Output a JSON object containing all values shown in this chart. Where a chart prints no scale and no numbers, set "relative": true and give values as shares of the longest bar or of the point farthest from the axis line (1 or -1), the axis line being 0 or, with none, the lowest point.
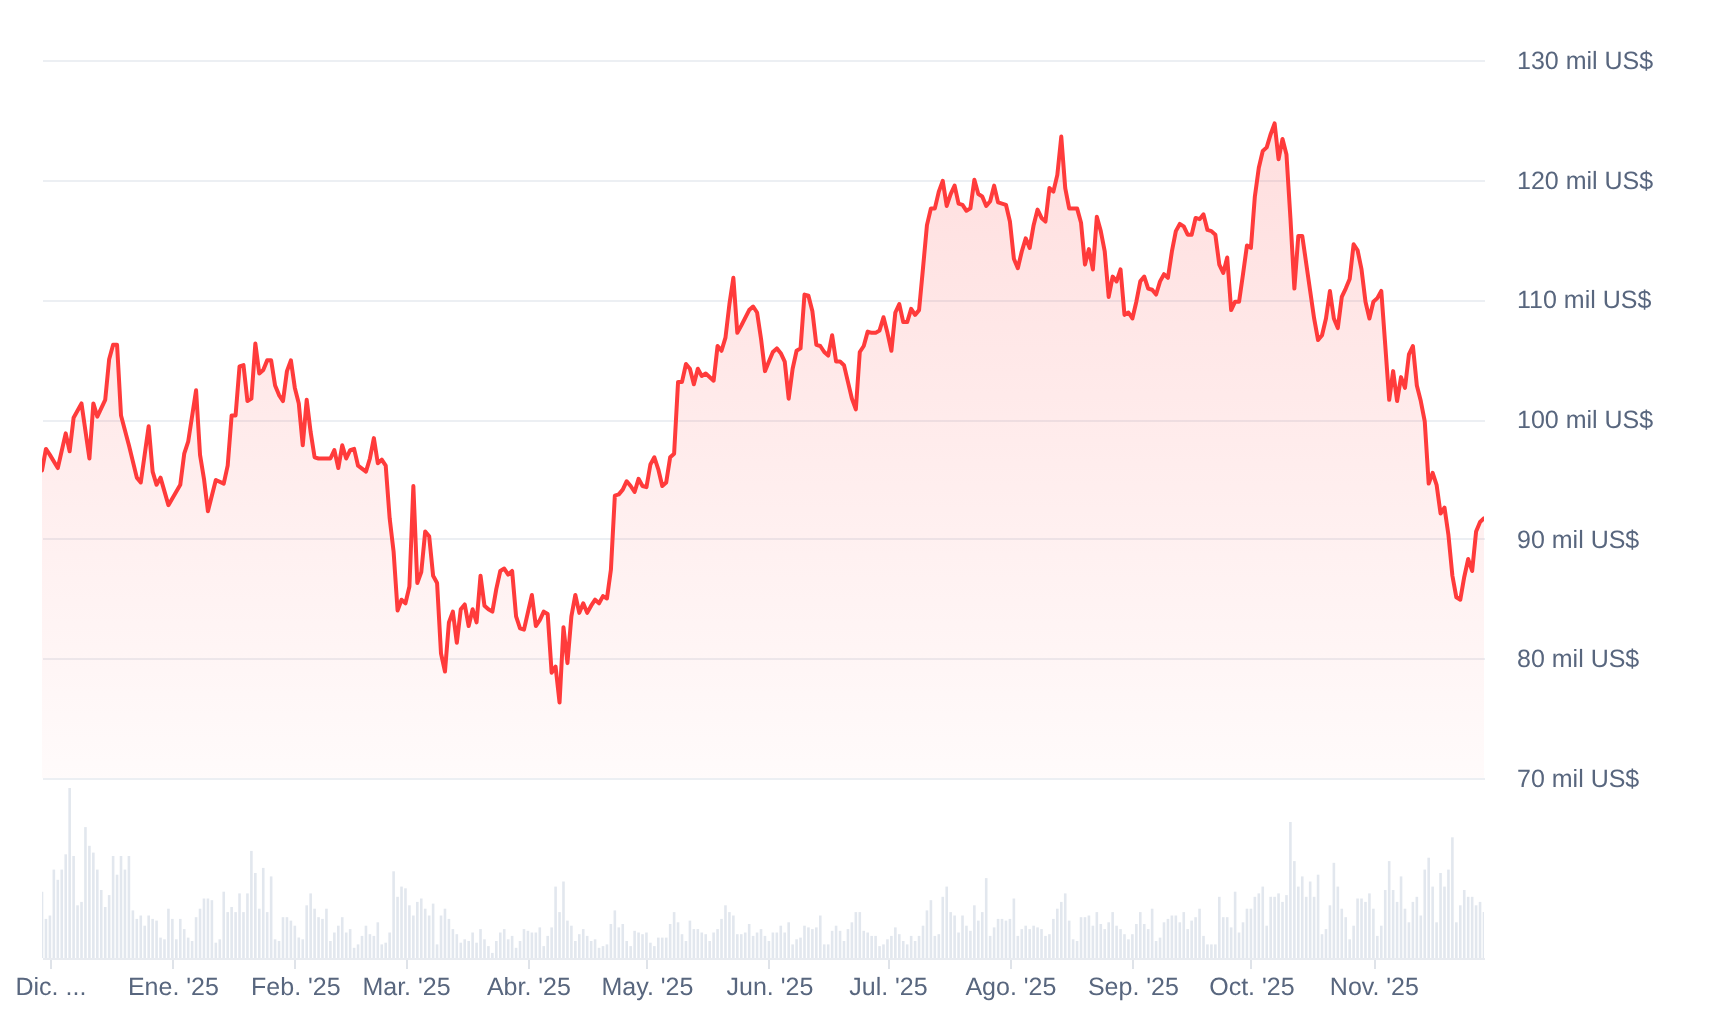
{
  "chart_data": [
    {
      "type": "area",
      "tick_labels": "y",
      "grid": "y",
      "xlim": [
        "2024-11-29",
        "2025-11-29"
      ],
      "ylim": [
        70,
        130
      ],
      "yticks": [
        {
          "value": 70,
          "label": "70 mil US$"
        },
        {
          "value": 80,
          "label": "80 mil US$"
        },
        {
          "value": 90,
          "label": "90 mil US$"
        },
        {
          "value": 100,
          "label": "100 mil US$"
        },
        {
          "value": 110,
          "label": "110 mil US$"
        },
        {
          "value": 120,
          "label": "120 mil US$"
        },
        {
          "value": 130,
          "label": "130 mil US$"
        }
      ],
      "x": [
        "2024-11-29",
        "2024-11-30",
        "2024-12-01",
        "2024-12-03",
        "2024-12-05",
        "2024-12-06",
        "2024-12-07",
        "2024-12-09",
        "2024-12-11",
        "2024-12-12",
        "2024-12-13",
        "2024-12-15",
        "2024-12-16",
        "2024-12-17",
        "2024-12-18",
        "2024-12-19",
        "2024-12-21",
        "2024-12-23",
        "2024-12-24",
        "2024-12-26",
        "2024-12-27",
        "2024-12-28",
        "2024-12-29",
        "2024-12-31",
        "2025-01-03",
        "2025-01-04",
        "2025-01-05",
        "2025-01-07",
        "2025-01-08",
        "2025-01-09",
        "2025-01-10",
        "2025-01-12",
        "2025-01-14",
        "2025-01-15",
        "2025-01-16",
        "2025-01-17",
        "2025-01-18",
        "2025-01-19",
        "2025-01-20",
        "2025-01-21",
        "2025-01-22",
        "2025-01-23",
        "2025-01-24",
        "2025-01-25",
        "2025-01-26",
        "2025-01-27",
        "2025-01-28",
        "2025-01-29",
        "2025-01-30",
        "2025-01-31",
        "2025-02-01",
        "2025-02-02",
        "2025-02-03",
        "2025-02-04",
        "2025-02-05",
        "2025-02-06",
        "2025-02-07",
        "2025-02-10",
        "2025-02-11",
        "2025-02-12",
        "2025-02-13",
        "2025-02-14",
        "2025-02-15",
        "2025-02-16",
        "2025-02-17",
        "2025-02-19",
        "2025-02-20",
        "2025-02-21",
        "2025-02-22",
        "2025-02-23",
        "2025-02-24",
        "2025-02-25",
        "2025-02-26",
        "2025-02-27",
        "2025-02-28",
        "2025-03-01",
        "2025-03-02",
        "2025-03-03",
        "2025-03-04",
        "2025-03-05",
        "2025-03-06",
        "2025-03-07",
        "2025-03-08",
        "2025-03-09",
        "2025-03-10",
        "2025-03-11",
        "2025-03-12",
        "2025-03-13",
        "2025-03-14",
        "2025-03-15",
        "2025-03-16",
        "2025-03-17",
        "2025-03-18",
        "2025-03-19",
        "2025-03-20",
        "2025-03-21",
        "2025-03-22",
        "2025-03-23",
        "2025-03-24",
        "2025-03-25",
        "2025-03-26",
        "2025-03-27",
        "2025-03-28",
        "2025-03-29",
        "2025-03-30",
        "2025-03-31",
        "2025-04-02",
        "2025-04-03",
        "2025-04-04",
        "2025-04-05",
        "2025-04-06",
        "2025-04-07",
        "2025-04-08",
        "2025-04-09",
        "2025-04-10",
        "2025-04-11",
        "2025-04-12",
        "2025-04-13",
        "2025-04-14",
        "2025-04-15",
        "2025-04-16",
        "2025-04-17",
        "2025-04-18",
        "2025-04-19",
        "2025-04-20",
        "2025-04-21",
        "2025-04-22",
        "2025-04-23",
        "2025-04-24",
        "2025-04-25",
        "2025-04-26",
        "2025-04-27",
        "2025-04-28",
        "2025-04-29",
        "2025-04-30",
        "2025-05-01",
        "2025-05-02",
        "2025-05-03",
        "2025-05-04",
        "2025-05-05",
        "2025-05-06",
        "2025-05-07",
        "2025-05-08",
        "2025-05-09",
        "2025-05-10",
        "2025-05-11",
        "2025-05-12",
        "2025-05-13",
        "2025-05-14",
        "2025-05-15",
        "2025-05-16",
        "2025-05-18",
        "2025-05-19",
        "2025-05-20",
        "2025-05-21",
        "2025-05-22",
        "2025-05-23",
        "2025-05-24",
        "2025-05-25",
        "2025-05-27",
        "2025-05-28",
        "2025-05-29",
        "2025-05-30",
        "2025-05-31",
        "2025-06-01",
        "2025-06-02",
        "2025-06-03",
        "2025-06-04",
        "2025-06-05",
        "2025-06-06",
        "2025-06-07",
        "2025-06-08",
        "2025-06-09",
        "2025-06-10",
        "2025-06-11",
        "2025-06-12",
        "2025-06-13",
        "2025-06-14",
        "2025-06-15",
        "2025-06-16",
        "2025-06-17",
        "2025-06-18",
        "2025-06-19",
        "2025-06-20",
        "2025-06-21",
        "2025-06-22",
        "2025-06-23",
        "2025-06-24",
        "2025-06-25",
        "2025-06-26",
        "2025-06-27",
        "2025-06-28",
        "2025-06-29",
        "2025-06-30",
        "2025-07-01",
        "2025-07-02",
        "2025-07-03",
        "2025-07-04",
        "2025-07-05",
        "2025-07-06",
        "2025-07-07",
        "2025-07-08",
        "2025-07-09",
        "2025-07-10",
        "2025-07-11",
        "2025-07-12",
        "2025-07-13",
        "2025-07-14",
        "2025-07-15",
        "2025-07-16",
        "2025-07-17",
        "2025-07-18",
        "2025-07-19",
        "2025-07-20",
        "2025-07-21",
        "2025-07-22",
        "2025-07-23",
        "2025-07-24",
        "2025-07-25",
        "2025-07-26",
        "2025-07-27",
        "2025-07-28",
        "2025-07-29",
        "2025-07-30",
        "2025-07-31",
        "2025-08-01",
        "2025-08-02",
        "2025-08-03",
        "2025-08-04",
        "2025-08-05",
        "2025-08-06",
        "2025-08-07",
        "2025-08-08",
        "2025-08-09",
        "2025-08-10",
        "2025-08-11",
        "2025-08-12",
        "2025-08-13",
        "2025-08-14",
        "2025-08-15",
        "2025-08-16",
        "2025-08-17",
        "2025-08-18",
        "2025-08-19",
        "2025-08-20",
        "2025-08-21",
        "2025-08-22",
        "2025-08-23",
        "2025-08-24",
        "2025-08-25",
        "2025-08-26",
        "2025-08-27",
        "2025-08-28",
        "2025-08-29",
        "2025-08-30",
        "2025-08-31",
        "2025-09-01",
        "2025-09-02",
        "2025-09-03",
        "2025-09-04",
        "2025-09-05",
        "2025-09-06",
        "2025-09-07",
        "2025-09-08",
        "2025-09-09",
        "2025-09-10",
        "2025-09-11",
        "2025-09-12",
        "2025-09-13",
        "2025-09-14",
        "2025-09-15",
        "2025-09-16",
        "2025-09-17",
        "2025-09-18",
        "2025-09-19",
        "2025-09-20",
        "2025-09-21",
        "2025-09-22",
        "2025-09-23",
        "2025-09-24",
        "2025-09-25",
        "2025-09-26",
        "2025-09-27",
        "2025-09-28",
        "2025-09-29",
        "2025-09-30",
        "2025-10-01",
        "2025-10-02",
        "2025-10-03",
        "2025-10-04",
        "2025-10-05",
        "2025-10-06",
        "2025-10-07",
        "2025-10-08",
        "2025-10-09",
        "2025-10-10",
        "2025-10-11",
        "2025-10-12",
        "2025-10-13",
        "2025-10-14",
        "2025-10-15",
        "2025-10-16",
        "2025-10-17",
        "2025-10-18",
        "2025-10-19",
        "2025-10-20",
        "2025-10-21",
        "2025-10-22",
        "2025-10-23",
        "2025-10-24",
        "2025-10-25",
        "2025-10-26",
        "2025-10-27",
        "2025-10-28",
        "2025-10-29",
        "2025-10-30",
        "2025-10-31",
        "2025-11-01",
        "2025-11-02",
        "2025-11-03",
        "2025-11-04",
        "2025-11-05",
        "2025-11-06",
        "2025-11-07",
        "2025-11-08",
        "2025-11-09",
        "2025-11-10",
        "2025-11-11",
        "2025-11-12",
        "2025-11-13",
        "2025-11-14",
        "2025-11-15",
        "2025-11-16",
        "2025-11-17",
        "2025-11-18",
        "2025-11-19",
        "2025-11-20",
        "2025-11-21",
        "2025-11-22",
        "2025-11-23",
        "2025-11-24",
        "2025-11-25",
        "2025-11-26",
        "2025-11-27",
        "2025-11-28",
        "2025-11-29"
      ],
      "series": [
        {
          "color": "#ff3b3b",
          "values": [
            95.7,
            97.5,
            97.0,
            95.9,
            98.8,
            97.3,
            100.1,
            101.3,
            96.7,
            101.3,
            100.2,
            101.6,
            105.0,
            106.2,
            106.2,
            100.3,
            97.8,
            95.1,
            94.7,
            99.4,
            95.6,
            94.5,
            95.1,
            92.8,
            94.5,
            97.1,
            98.1,
            102.4,
            97.0,
            95.0,
            92.3,
            94.9,
            94.6,
            96.1,
            100.3,
            100.3,
            104.4,
            104.5,
            101.5,
            101.7,
            106.3,
            103.8,
            104.1,
            104.9,
            104.9,
            102.8,
            102.0,
            101.5,
            104.0,
            104.9,
            102.6,
            101.3,
            97.8,
            101.6,
            98.9,
            96.8,
            96.7,
            96.7,
            97.4,
            95.9,
            97.8,
            96.7,
            97.4,
            97.5,
            96.1,
            95.6,
            96.7,
            98.4,
            96.3,
            96.6,
            96.1,
            91.7,
            88.9,
            84.0,
            84.9,
            84.6,
            86.0,
            94.4,
            86.3,
            87.2,
            90.6,
            90.2,
            86.9,
            86.3,
            80.4,
            78.9,
            83.0,
            83.9,
            81.3,
            84.1,
            84.5,
            82.7,
            84.1,
            83.0,
            86.9,
            84.4,
            84.1,
            83.9,
            85.8,
            87.3,
            87.5,
            87.0,
            87.3,
            83.5,
            82.5,
            82.4,
            85.3,
            82.7,
            83.2,
            83.9,
            83.7,
            78.8,
            79.3,
            76.3,
            82.6,
            79.6,
            83.5,
            85.3,
            83.8,
            84.6,
            83.8,
            84.4,
            84.9,
            84.6,
            85.2,
            85.0,
            87.4,
            93.6,
            93.7,
            94.1,
            94.8,
            94.4,
            93.9,
            95.0,
            94.4,
            94.3,
            96.2,
            96.8,
            95.8,
            94.4,
            94.7,
            96.8,
            97.1,
            103.1,
            103.1,
            104.6,
            104.2,
            102.9,
            104.2,
            103.6,
            103.8,
            103.2,
            106.1,
            105.7,
            106.8,
            109.6,
            111.8,
            107.2,
            107.8,
            109.1,
            109.4,
            108.9,
            106.7,
            104.0,
            104.8,
            105.6,
            105.9,
            105.5,
            104.8,
            101.7,
            104.2,
            105.7,
            105.9,
            110.4,
            110.3,
            109.0,
            106.2,
            106.1,
            105.6,
            105.3,
            107.0,
            104.8,
            104.8,
            104.5,
            103.1,
            101.7,
            100.8,
            105.6,
            106.1,
            107.3,
            107.2,
            107.2,
            107.4,
            108.5,
            107.2,
            105.7,
            108.9,
            109.6,
            108.1,
            108.1,
            109.2,
            108.7,
            109.1,
            112.6,
            116.2,
            117.6,
            117.6,
            119.0,
            119.9,
            117.8,
            118.8,
            119.5,
            118.0,
            117.9,
            117.4,
            117.6,
            120.0,
            118.8,
            118.6,
            117.8,
            118.2,
            119.5,
            118.1,
            118.0,
            117.9,
            116.5,
            113.4,
            112.6,
            114.0,
            115.1,
            114.3,
            116.2,
            117.5,
            116.8,
            116.5,
            119.3,
            119.0,
            120.4,
            123.6,
            119.3,
            117.6,
            117.6,
            117.6,
            116.4,
            112.9,
            114.2,
            112.5,
            116.9,
            115.7,
            114.0,
            110.2,
            111.9,
            111.5,
            112.5,
            108.7,
            108.9,
            108.4,
            109.8,
            111.5,
            111.9,
            110.9,
            110.8,
            110.4,
            111.5,
            112.1,
            111.8,
            114.0,
            115.7,
            116.3,
            116.1,
            115.4,
            115.4,
            116.8,
            116.7,
            117.1,
            115.8,
            115.7,
            115.4,
            112.9,
            112.2,
            113.5,
            109.1,
            109.8,
            109.8,
            112.1,
            114.5,
            114.3,
            118.6,
            121.0,
            122.4,
            122.7,
            123.8,
            124.7,
            121.7,
            123.4,
            122.1,
            116.8,
            110.9,
            115.3,
            115.3,
            113.0,
            110.7,
            108.4,
            106.6,
            107.0,
            108.4,
            110.7,
            108.4,
            107.6,
            110.2,
            110.9,
            111.7,
            114.6,
            114.1,
            112.5,
            109.8,
            108.4,
            109.8,
            110.1,
            110.7,
            106.2,
            101.6,
            104.0,
            101.5,
            103.5,
            102.6,
            105.4,
            106.1,
            102.8,
            101.5,
            99.8,
            94.6,
            95.5,
            94.5,
            92.1,
            92.6,
            90.3,
            86.9,
            85.1,
            84.9,
            86.8,
            88.3,
            87.3,
            90.6,
            91.4,
            91.7
          ]
        }
      ]
    },
    {
      "type": "bar",
      "relative": true,
      "tick_labels": "x",
      "xlim": [
        "2024-11-29",
        "2025-11-29"
      ],
      "xticks": [
        {
          "value": "2024-12-01",
          "label": "Dic. ..."
        },
        {
          "value": "2025-01-01",
          "label": "Ene. '25"
        },
        {
          "value": "2025-02-01",
          "label": "Feb. '25"
        },
        {
          "value": "2025-03-01",
          "label": "Mar. '25"
        },
        {
          "value": "2025-04-01",
          "label": "Abr. '25"
        },
        {
          "value": "2025-05-01",
          "label": "May. '25"
        },
        {
          "value": "2025-06-01",
          "label": "Jun. '25"
        },
        {
          "value": "2025-07-01",
          "label": "Jul. '25"
        },
        {
          "value": "2025-08-01",
          "label": "Ago. '25"
        },
        {
          "value": "2025-09-01",
          "label": "Sep. '25"
        },
        {
          "value": "2025-10-01",
          "label": "Oct. '25"
        },
        {
          "value": "2025-11-01",
          "label": "Nov. '25"
        }
      ],
      "x": [
        "2024-11-29",
        "2024-11-30",
        "2024-12-01",
        "2024-12-02",
        "2024-12-03",
        "2024-12-04",
        "2024-12-05",
        "2024-12-06",
        "2024-12-07",
        "2024-12-08",
        "2024-12-09",
        "2024-12-10",
        "2024-12-11",
        "2024-12-12",
        "2024-12-13",
        "2024-12-14",
        "2024-12-15",
        "2024-12-16",
        "2024-12-17",
        "2024-12-18",
        "2024-12-19",
        "2024-12-20",
        "2024-12-21",
        "2024-12-22",
        "2024-12-23",
        "2024-12-24",
        "2024-12-25",
        "2024-12-26",
        "2024-12-27",
        "2024-12-28",
        "2024-12-29",
        "2024-12-30",
        "2024-12-31",
        "2025-01-01",
        "2025-01-02",
        "2025-01-03",
        "2025-01-04",
        "2025-01-05",
        "2025-01-06",
        "2025-01-07",
        "2025-01-08",
        "2025-01-09",
        "2025-01-10",
        "2025-01-11",
        "2025-01-12",
        "2025-01-13",
        "2025-01-14",
        "2025-01-15",
        "2025-01-16",
        "2025-01-17",
        "2025-01-18",
        "2025-01-19",
        "2025-01-20",
        "2025-01-21",
        "2025-01-22",
        "2025-01-23",
        "2025-01-24",
        "2025-01-25",
        "2025-01-26",
        "2025-01-27",
        "2025-01-28",
        "2025-01-29",
        "2025-01-30",
        "2025-01-31",
        "2025-02-01",
        "2025-02-02",
        "2025-02-03",
        "2025-02-04",
        "2025-02-05",
        "2025-02-06",
        "2025-02-07",
        "2025-02-08",
        "2025-02-09",
        "2025-02-10",
        "2025-02-11",
        "2025-02-12",
        "2025-02-13",
        "2025-02-14",
        "2025-02-15",
        "2025-02-16",
        "2025-02-17",
        "2025-02-18",
        "2025-02-19",
        "2025-02-20",
        "2025-02-21",
        "2025-02-22",
        "2025-02-23",
        "2025-02-24",
        "2025-02-25",
        "2025-02-26",
        "2025-02-27",
        "2025-02-28",
        "2025-03-01",
        "2025-03-02",
        "2025-03-03",
        "2025-03-04",
        "2025-03-05",
        "2025-03-06",
        "2025-03-07",
        "2025-03-08",
        "2025-03-09",
        "2025-03-10",
        "2025-03-11",
        "2025-03-12",
        "2025-03-13",
        "2025-03-14",
        "2025-03-15",
        "2025-03-16",
        "2025-03-17",
        "2025-03-18",
        "2025-03-19",
        "2025-03-20",
        "2025-03-21",
        "2025-03-22",
        "2025-03-23",
        "2025-03-24",
        "2025-03-25",
        "2025-03-26",
        "2025-03-27",
        "2025-03-28",
        "2025-03-29",
        "2025-03-30",
        "2025-03-31",
        "2025-04-01",
        "2025-04-02",
        "2025-04-03",
        "2025-04-04",
        "2025-04-05",
        "2025-04-06",
        "2025-04-07",
        "2025-04-08",
        "2025-04-09",
        "2025-04-10",
        "2025-04-11",
        "2025-04-12",
        "2025-04-13",
        "2025-04-14",
        "2025-04-15",
        "2025-04-16",
        "2025-04-17",
        "2025-04-18",
        "2025-04-19",
        "2025-04-20",
        "2025-04-21",
        "2025-04-22",
        "2025-04-23",
        "2025-04-24",
        "2025-04-25",
        "2025-04-26",
        "2025-04-27",
        "2025-04-28",
        "2025-04-29",
        "2025-04-30",
        "2025-05-01",
        "2025-05-02",
        "2025-05-03",
        "2025-05-04",
        "2025-05-05",
        "2025-05-06",
        "2025-05-07",
        "2025-05-08",
        "2025-05-09",
        "2025-05-10",
        "2025-05-11",
        "2025-05-12",
        "2025-05-13",
        "2025-05-14",
        "2025-05-15",
        "2025-05-16",
        "2025-05-17",
        "2025-05-18",
        "2025-05-19",
        "2025-05-20",
        "2025-05-21",
        "2025-05-22",
        "2025-05-23",
        "2025-05-24",
        "2025-05-25",
        "2025-05-26",
        "2025-05-27",
        "2025-05-28",
        "2025-05-29",
        "2025-05-30",
        "2025-05-31",
        "2025-06-01",
        "2025-06-02",
        "2025-06-03",
        "2025-06-04",
        "2025-06-05",
        "2025-06-06",
        "2025-06-07",
        "2025-06-08",
        "2025-06-09",
        "2025-06-10",
        "2025-06-11",
        "2025-06-12",
        "2025-06-13",
        "2025-06-14",
        "2025-06-15",
        "2025-06-16",
        "2025-06-17",
        "2025-06-18",
        "2025-06-19",
        "2025-06-20",
        "2025-06-21",
        "2025-06-22",
        "2025-06-23",
        "2025-06-24",
        "2025-06-25",
        "2025-06-26",
        "2025-06-27",
        "2025-06-28",
        "2025-06-29",
        "2025-06-30",
        "2025-07-01",
        "2025-07-02",
        "2025-07-03",
        "2025-07-04",
        "2025-07-05",
        "2025-07-06",
        "2025-07-07",
        "2025-07-08",
        "2025-07-09",
        "2025-07-10",
        "2025-07-11",
        "2025-07-12",
        "2025-07-13",
        "2025-07-14",
        "2025-07-15",
        "2025-07-16",
        "2025-07-17",
        "2025-07-18",
        "2025-07-19",
        "2025-07-20",
        "2025-07-21",
        "2025-07-22",
        "2025-07-23",
        "2025-07-24",
        "2025-07-25",
        "2025-07-26",
        "2025-07-27",
        "2025-07-28",
        "2025-07-29",
        "2025-07-30",
        "2025-07-31",
        "2025-08-01",
        "2025-08-02",
        "2025-08-03",
        "2025-08-04",
        "2025-08-05",
        "2025-08-06",
        "2025-08-07",
        "2025-08-08",
        "2025-08-09",
        "2025-08-10",
        "2025-08-11",
        "2025-08-12",
        "2025-08-13",
        "2025-08-14",
        "2025-08-15",
        "2025-08-16",
        "2025-08-17",
        "2025-08-18",
        "2025-08-19",
        "2025-08-20",
        "2025-08-21",
        "2025-08-22",
        "2025-08-23",
        "2025-08-24",
        "2025-08-25",
        "2025-08-26",
        "2025-08-27",
        "2025-08-28",
        "2025-08-29",
        "2025-08-30",
        "2025-08-31",
        "2025-09-01",
        "2025-09-02",
        "2025-09-03",
        "2025-09-04",
        "2025-09-05",
        "2025-09-06",
        "2025-09-07",
        "2025-09-08",
        "2025-09-09",
        "2025-09-10",
        "2025-09-11",
        "2025-09-12",
        "2025-09-13",
        "2025-09-14",
        "2025-09-15",
        "2025-09-16",
        "2025-09-17",
        "2025-09-18",
        "2025-09-19",
        "2025-09-20",
        "2025-09-21",
        "2025-09-22",
        "2025-09-23",
        "2025-09-24",
        "2025-09-25",
        "2025-09-26",
        "2025-09-27",
        "2025-09-28",
        "2025-09-29",
        "2025-09-30",
        "2025-10-01",
        "2025-10-02",
        "2025-10-03",
        "2025-10-04",
        "2025-10-05",
        "2025-10-06",
        "2025-10-07",
        "2025-10-08",
        "2025-10-09",
        "2025-10-10",
        "2025-10-11",
        "2025-10-12",
        "2025-10-13",
        "2025-10-14",
        "2025-10-15",
        "2025-10-16",
        "2025-10-17",
        "2025-10-18",
        "2025-10-19",
        "2025-10-20",
        "2025-10-21",
        "2025-10-22",
        "2025-10-23",
        "2025-10-24",
        "2025-10-25",
        "2025-10-26",
        "2025-10-27",
        "2025-10-28",
        "2025-10-29",
        "2025-10-30",
        "2025-10-31",
        "2025-11-01",
        "2025-11-02",
        "2025-11-03",
        "2025-11-04",
        "2025-11-05",
        "2025-11-06",
        "2025-11-07",
        "2025-11-08",
        "2025-11-09",
        "2025-11-10",
        "2025-11-11",
        "2025-11-12",
        "2025-11-13",
        "2025-11-14",
        "2025-11-15",
        "2025-11-16",
        "2025-11-17",
        "2025-11-18",
        "2025-11-19",
        "2025-11-20",
        "2025-11-21",
        "2025-11-22",
        "2025-11-23",
        "2025-11-24",
        "2025-11-25",
        "2025-11-26",
        "2025-11-27",
        "2025-11-28",
        "2025-11-29"
      ],
      "series": [
        {
          "color": "#e2e7ee",
          "values": [
            0.39,
            0.23,
            0.25,
            0.52,
            0.46,
            0.52,
            0.61,
            1,
            0.6,
            0.31,
            0.33,
            0.77,
            0.66,
            0.62,
            0.52,
            0.4,
            0.3,
            0.37,
            0.6,
            0.49,
            0.6,
            0.52,
            0.6,
            0.28,
            0.23,
            0.25,
            0.19,
            0.25,
            0.23,
            0.22,
            0.12,
            0.11,
            0.29,
            0.23,
            0.11,
            0.23,
            0.17,
            0.12,
            0.1,
            0.24,
            0.29,
            0.35,
            0.35,
            0.34,
            0.09,
            0.11,
            0.39,
            0.27,
            0.3,
            0.27,
            0.38,
            0.27,
            0.38,
            0.63,
            0.5,
            0.29,
            0.53,
            0.27,
            0.48,
            0.11,
            0.1,
            0.24,
            0.24,
            0.22,
            0.19,
            0.12,
            0.11,
            0.31,
            0.38,
            0.29,
            0.24,
            0.23,
            0.29,
            0.1,
            0.15,
            0.19,
            0.24,
            0.15,
            0.17,
            0.06,
            0.08,
            0.13,
            0.19,
            0.14,
            0.13,
            0.21,
            0.08,
            0.09,
            0.15,
            0.51,
            0.36,
            0.42,
            0.41,
            0.31,
            0.25,
            0.33,
            0.35,
            0.29,
            0.25,
            0.32,
            0.08,
            0.25,
            0.29,
            0.23,
            0.17,
            0.14,
            0.09,
            0.11,
            0.1,
            0.15,
            0.09,
            0.17,
            0.11,
            0.07,
            0.03,
            0.1,
            0.15,
            0.17,
            0.11,
            0.13,
            0.06,
            0.1,
            0.17,
            0.16,
            0.15,
            0.15,
            0.18,
            0.07,
            0.13,
            0.18,
            0.42,
            0.27,
            0.45,
            0.22,
            0.19,
            0.1,
            0.14,
            0.17,
            0.13,
            0.1,
            0.11,
            0.06,
            0.07,
            0.08,
            0.2,
            0.28,
            0.18,
            0.2,
            0.1,
            0.07,
            0.16,
            0.15,
            0.14,
            0.15,
            0.09,
            0.07,
            0.12,
            0.12,
            0.12,
            0.2,
            0.27,
            0.21,
            0.14,
            0.1,
            0.22,
            0.17,
            0.17,
            0.15,
            0.14,
            0.1,
            0.15,
            0.17,
            0.23,
            0.31,
            0.27,
            0.25,
            0.14,
            0.14,
            0.15,
            0.2,
            0.13,
            0.15,
            0.17,
            0.13,
            0.1,
            0.15,
            0.15,
            0.19,
            0.15,
            0.21,
            0.08,
            0.11,
            0.12,
            0.19,
            0.18,
            0.17,
            0.18,
            0.25,
            0.08,
            0.08,
            0.16,
            0.19,
            0.16,
            0.1,
            0.17,
            0.21,
            0.27,
            0.27,
            0.16,
            0.15,
            0.13,
            0.13,
            0.07,
            0.08,
            0.11,
            0.13,
            0.18,
            0.14,
            0.1,
            0.08,
            0.13,
            0.1,
            0.13,
            0.19,
            0.28,
            0.34,
            0.13,
            0.14,
            0.36,
            0.42,
            0.27,
            0.25,
            0.15,
            0.25,
            0.19,
            0.16,
            0.31,
            0.22,
            0.27,
            0.47,
            0.13,
            0.18,
            0.23,
            0.23,
            0.22,
            0.23,
            0.35,
            0.13,
            0.17,
            0.19,
            0.17,
            0.19,
            0.18,
            0.17,
            0.13,
            0.14,
            0.23,
            0.29,
            0.33,
            0.38,
            0.22,
            0.11,
            0.1,
            0.24,
            0.24,
            0.25,
            0.19,
            0.27,
            0.2,
            0.17,
            0.21,
            0.27,
            0.19,
            0.17,
            0.14,
            0.11,
            0.14,
            0.2,
            0.27,
            0.2,
            0.17,
            0.29,
            0.1,
            0.12,
            0.21,
            0.23,
            0.25,
            0.25,
            0.21,
            0.27,
            0.17,
            0.22,
            0.24,
            0.29,
            0.13,
            0.08,
            0.08,
            0.08,
            0.36,
            0.24,
            0.24,
            0.18,
            0.39,
            0.15,
            0.21,
            0.29,
            0.29,
            0.36,
            0.38,
            0.42,
            0.19,
            0.36,
            0.36,
            0.38,
            0.33,
            0.37,
            0.8,
            0.57,
            0.42,
            0.48,
            0.36,
            0.45,
            0.36,
            0.49,
            0.14,
            0.17,
            0.31,
            0.56,
            0.42,
            0.29,
            0.24,
            0.11,
            0.19,
            0.35,
            0.35,
            0.33,
            0.38,
            0.29,
            0.13,
            0.19,
            0.4,
            0.57,
            0.4,
            0.33,
            0.48,
            0.29,
            0.21,
            0.33,
            0.36,
            0.25,
            0.52,
            0.59,
            0.42,
            0.21,
            0.5,
            0.42,
            0.52,
            0.71,
            0.21,
            0.31,
            0.4,
            0.36,
            0.36,
            0.31,
            0.33,
            0.27
          ]
        }
      ]
    }
  ]
}
